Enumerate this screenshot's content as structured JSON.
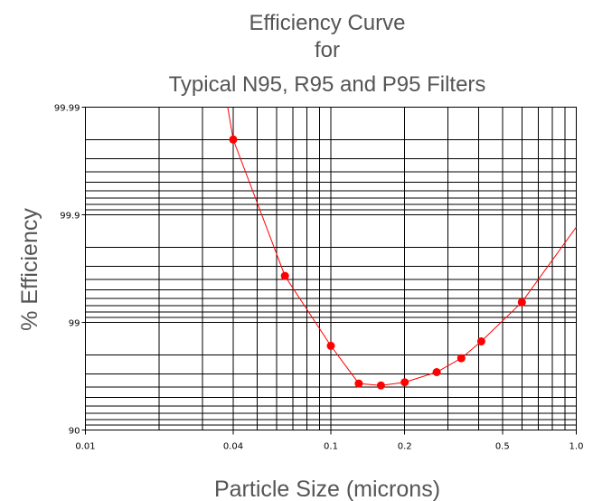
{
  "chart_data": {
    "type": "line",
    "title_lines": [
      "Efficiency Curve",
      "for",
      "Typical N95, R95 and P95 Filters"
    ],
    "xlabel": "Particle Size (microns)",
    "ylabel": "% Efficiency",
    "x_scale": "log",
    "y_scale": "log of (100 - efficiency)",
    "xlim": [
      0.01,
      1.0
    ],
    "ylim": [
      90,
      99.99
    ],
    "grid": true,
    "x_ticks": [
      {
        "value": 0.01,
        "label": "0.01"
      },
      {
        "value": 0.04,
        "label": "0.04"
      },
      {
        "value": 0.1,
        "label": "0.1"
      },
      {
        "value": 0.2,
        "label": "0.2"
      },
      {
        "value": 0.5,
        "label": "0.5"
      },
      {
        "value": 1.0,
        "label": "1.0"
      }
    ],
    "y_ticks": [
      {
        "value": 90,
        "label": "90"
      },
      {
        "value": 99,
        "label": "99"
      },
      {
        "value": 99.9,
        "label": "99.9"
      },
      {
        "value": 99.99,
        "label": "99.99"
      }
    ],
    "series": [
      {
        "color": "#ff0000",
        "x": [
          0.04,
          0.065,
          0.1,
          0.13,
          0.16,
          0.2,
          0.27,
          0.34,
          0.41,
          0.6
        ],
        "y": [
          99.98,
          99.63,
          98.35,
          96.3,
          96.15,
          96.4,
          97.1,
          97.85,
          98.5,
          99.35
        ]
      }
    ],
    "curve_extension": {
      "x_start": 0.038,
      "x_end": 1.0,
      "y_start": 99.99,
      "y_end": 99.87
    }
  }
}
